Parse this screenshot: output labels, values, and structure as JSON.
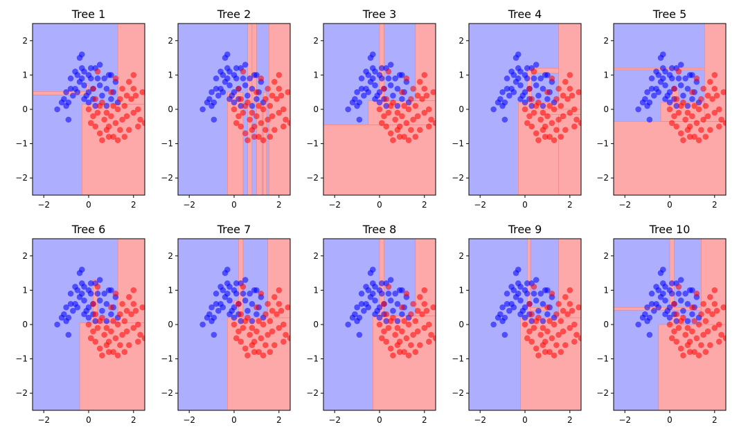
{
  "colors": {
    "class0": "#0000ff",
    "class1": "#ff0000",
    "region0": "#aeaefe",
    "region1": "#fea9a9"
  },
  "chart_data": {
    "type": "scatter",
    "xlim": [
      -2.5,
      2.5
    ],
    "ylim": [
      -2.5,
      2.5
    ],
    "xticks": [
      -2,
      0,
      2
    ],
    "yticks": [
      -2,
      -1,
      0,
      1,
      2
    ],
    "points": {
      "class0": [
        [
          -1.4,
          0.0
        ],
        [
          -1.2,
          0.2
        ],
        [
          -1.1,
          0.3
        ],
        [
          -0.9,
          -0.3
        ],
        [
          -0.8,
          0.6
        ],
        [
          -0.7,
          0.4
        ],
        [
          -0.6,
          1.1
        ],
        [
          -0.5,
          1.0
        ],
        [
          -0.4,
          0.8
        ],
        [
          -0.3,
          0.9
        ],
        [
          -0.2,
          0.7
        ],
        [
          -0.2,
          1.1
        ],
        [
          -0.1,
          0.4
        ],
        [
          0.0,
          1.0
        ],
        [
          0.0,
          0.5
        ],
        [
          0.1,
          0.9
        ],
        [
          0.2,
          0.6
        ],
        [
          0.3,
          1.2
        ],
        [
          0.4,
          0.9
        ],
        [
          0.5,
          0.7
        ],
        [
          0.6,
          0.4
        ],
        [
          0.7,
          0.9
        ],
        [
          0.8,
          0.6
        ],
        [
          0.9,
          1.0
        ],
        [
          1.0,
          0.3
        ],
        [
          1.1,
          0.5
        ],
        [
          1.2,
          0.8
        ],
        [
          -0.9,
          0.2
        ],
        [
          -1.0,
          0.1
        ],
        [
          -0.4,
          1.5
        ],
        [
          -0.3,
          1.2
        ],
        [
          0.0,
          0.2
        ],
        [
          0.2,
          0.3
        ],
        [
          1.3,
          0.2
        ],
        [
          -0.8,
          0.9
        ],
        [
          -0.6,
          0.6
        ],
        [
          -0.2,
          0.3
        ],
        [
          0.5,
          1.3
        ],
        [
          1.0,
          1.0
        ],
        [
          -0.3,
          1.6
        ],
        [
          0.3,
          0.1
        ],
        [
          0.1,
          1.2
        ],
        [
          -0.5,
          0.5
        ],
        [
          0.8,
          0.1
        ],
        [
          -1.0,
          0.5
        ]
      ],
      "class1": [
        [
          0.0,
          0.0
        ],
        [
          0.2,
          -0.2
        ],
        [
          0.3,
          -0.5
        ],
        [
          0.4,
          -0.1
        ],
        [
          0.5,
          -0.7
        ],
        [
          0.6,
          0.2
        ],
        [
          0.7,
          -0.3
        ],
        [
          0.8,
          -0.1
        ],
        [
          0.9,
          -0.5
        ],
        [
          1.0,
          -0.2
        ],
        [
          1.1,
          -0.8
        ],
        [
          1.2,
          -0.4
        ],
        [
          1.3,
          0.0
        ],
        [
          1.4,
          -0.6
        ],
        [
          1.5,
          -0.3
        ],
        [
          1.6,
          0.1
        ],
        [
          1.7,
          -0.2
        ],
        [
          1.8,
          -0.6
        ],
        [
          1.9,
          0.3
        ],
        [
          2.0,
          -0.1
        ],
        [
          2.1,
          0.4
        ],
        [
          2.2,
          0.0
        ],
        [
          2.3,
          -0.3
        ],
        [
          2.4,
          0.5
        ],
        [
          2.5,
          -0.4
        ],
        [
          1.0,
          0.5
        ],
        [
          1.2,
          0.9
        ],
        [
          1.5,
          0.6
        ],
        [
          1.8,
          0.8
        ],
        [
          2.0,
          0.6
        ],
        [
          0.3,
          0.3
        ],
        [
          0.5,
          0.1
        ],
        [
          0.2,
          0.6
        ],
        [
          0.4,
          1.1
        ],
        [
          0.6,
          -0.9
        ],
        [
          0.9,
          -0.8
        ],
        [
          1.3,
          -0.9
        ],
        [
          1.6,
          -0.8
        ],
        [
          2.2,
          -0.5
        ],
        [
          1.1,
          0.1
        ],
        [
          1.4,
          0.3
        ],
        [
          1.7,
          0.4
        ],
        [
          2.0,
          1.0
        ],
        [
          0.8,
          -0.6
        ],
        [
          0.1,
          -0.4
        ]
      ]
    },
    "panels": [
      {
        "title": "Tree 1",
        "red": [
          [
            -0.3,
            2.5,
            -2.5,
            0.15
          ],
          [
            1.3,
            2.5,
            0.15,
            2.5
          ],
          [
            -2.5,
            0.05,
            0.42,
            0.52
          ],
          [
            -0.1,
            0.0,
            0.52,
            0.75
          ]
        ]
      },
      {
        "title": "Tree 2",
        "red": [
          [
            1.55,
            2.5,
            -2.5,
            2.5
          ],
          [
            0.6,
            0.8,
            -2.5,
            2.5
          ],
          [
            -0.3,
            0.4,
            -2.5,
            0.5
          ],
          [
            1.0,
            1.25,
            -2.5,
            0.2
          ],
          [
            0.8,
            1.0,
            0.2,
            2.5
          ],
          [
            1.3,
            1.45,
            -2.5,
            0.5
          ]
        ]
      },
      {
        "title": "Tree 3",
        "red": [
          [
            -2.5,
            2.5,
            -2.5,
            -0.45
          ],
          [
            -0.5,
            2.5,
            -0.45,
            0.25
          ],
          [
            1.6,
            2.5,
            0.25,
            2.5
          ],
          [
            0.0,
            0.2,
            0.25,
            2.5
          ]
        ]
      },
      {
        "title": "Tree 4",
        "red": [
          [
            1.5,
            2.5,
            -2.5,
            2.5
          ],
          [
            -0.3,
            1.5,
            -2.5,
            0.2
          ],
          [
            0.1,
            0.3,
            0.2,
            1.2
          ],
          [
            0.3,
            1.5,
            1.05,
            1.2
          ],
          [
            0.8,
            2.5,
            -0.15,
            0.0
          ]
        ]
      },
      {
        "title": "Tree 5",
        "red": [
          [
            -2.5,
            2.5,
            -2.5,
            -0.35
          ],
          [
            1.55,
            2.5,
            -0.35,
            2.5
          ],
          [
            -0.4,
            1.55,
            -0.35,
            0.2
          ],
          [
            -2.5,
            1.55,
            1.15,
            1.2
          ],
          [
            0.1,
            0.4,
            0.2,
            0.55
          ]
        ]
      },
      {
        "title": "Tree 6",
        "red": [
          [
            -0.4,
            2.5,
            -2.5,
            0.05
          ],
          [
            1.3,
            2.5,
            0.05,
            2.5
          ],
          [
            0.2,
            0.4,
            0.05,
            1.3
          ],
          [
            0.1,
            1.3,
            0.1,
            0.2
          ]
        ]
      },
      {
        "title": "Tree 7",
        "red": [
          [
            -0.3,
            2.5,
            -2.5,
            0.2
          ],
          [
            1.5,
            2.5,
            0.2,
            2.5
          ],
          [
            0.2,
            0.4,
            0.2,
            2.5
          ],
          [
            0.0,
            0.2,
            0.5,
            0.7
          ]
        ]
      },
      {
        "title": "Tree 8",
        "red": [
          [
            -0.3,
            2.5,
            -2.5,
            0.25
          ],
          [
            1.6,
            2.5,
            0.25,
            2.5
          ],
          [
            0.0,
            0.2,
            0.25,
            2.5
          ]
        ]
      },
      {
        "title": "Tree 9",
        "red": [
          [
            -0.2,
            2.5,
            -2.5,
            0.2
          ],
          [
            1.5,
            2.5,
            0.2,
            2.5
          ],
          [
            0.1,
            0.25,
            0.2,
            2.5
          ],
          [
            0.25,
            1.0,
            0.4,
            0.5
          ]
        ]
      },
      {
        "title": "Tree 10",
        "red": [
          [
            -0.5,
            2.5,
            -2.5,
            0.0
          ],
          [
            1.4,
            2.5,
            0.0,
            2.5
          ],
          [
            0.0,
            0.2,
            0.5,
            2.5
          ],
          [
            -2.5,
            1.4,
            0.42,
            0.5
          ],
          [
            0.0,
            0.6,
            0.0,
            0.25
          ]
        ]
      }
    ]
  }
}
